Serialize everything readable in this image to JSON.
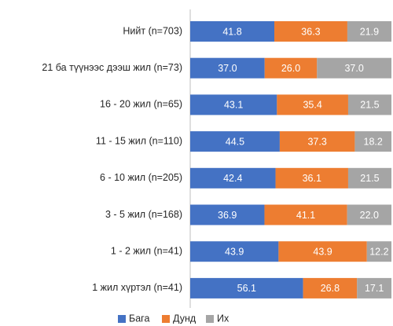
{
  "chart_data": {
    "type": "stacked-bar-horizontal",
    "categories": [
      "Нийт (n=703)",
      "21 ба түүнээс дээш жил (n=73)",
      "16 - 20 жил (n=65)",
      "11 - 15 жил (n=110)",
      "6 - 10 жил (n=205)",
      "3 - 5 жил (n=168)",
      "1 - 2 жил (n=41)",
      "1 жил хүртэл (n=41)"
    ],
    "series": [
      {
        "name": "Бага",
        "color": "#4472c4",
        "values": [
          41.8,
          37,
          43.1,
          44.5,
          42.4,
          36.9,
          43.9,
          56.1
        ],
        "value_labels": [
          "41.8",
          "37.0",
          "43.1",
          "44.5",
          "42.4",
          "36.9",
          "43.9",
          "56.1"
        ]
      },
      {
        "name": "Дунд",
        "color": "#ed7d31",
        "values": [
          36.3,
          26,
          35.4,
          37.3,
          36.1,
          41.1,
          43.9,
          26.8
        ],
        "value_labels": [
          "36.3",
          "26.0",
          "35.4",
          "37.3",
          "36.1",
          "41.1",
          "43.9",
          "26.8"
        ]
      },
      {
        "name": "Их",
        "color": "#a5a5a5",
        "values": [
          21.9,
          37,
          21.5,
          18.2,
          21.5,
          22,
          12.2,
          17.1
        ],
        "value_labels": [
          "21.9",
          "37.0",
          "21.5",
          "18.2",
          "21.5",
          "22.0",
          "12.2",
          "17.1"
        ]
      }
    ],
    "xlim": [
      0,
      100
    ],
    "legend": "bottom"
  }
}
